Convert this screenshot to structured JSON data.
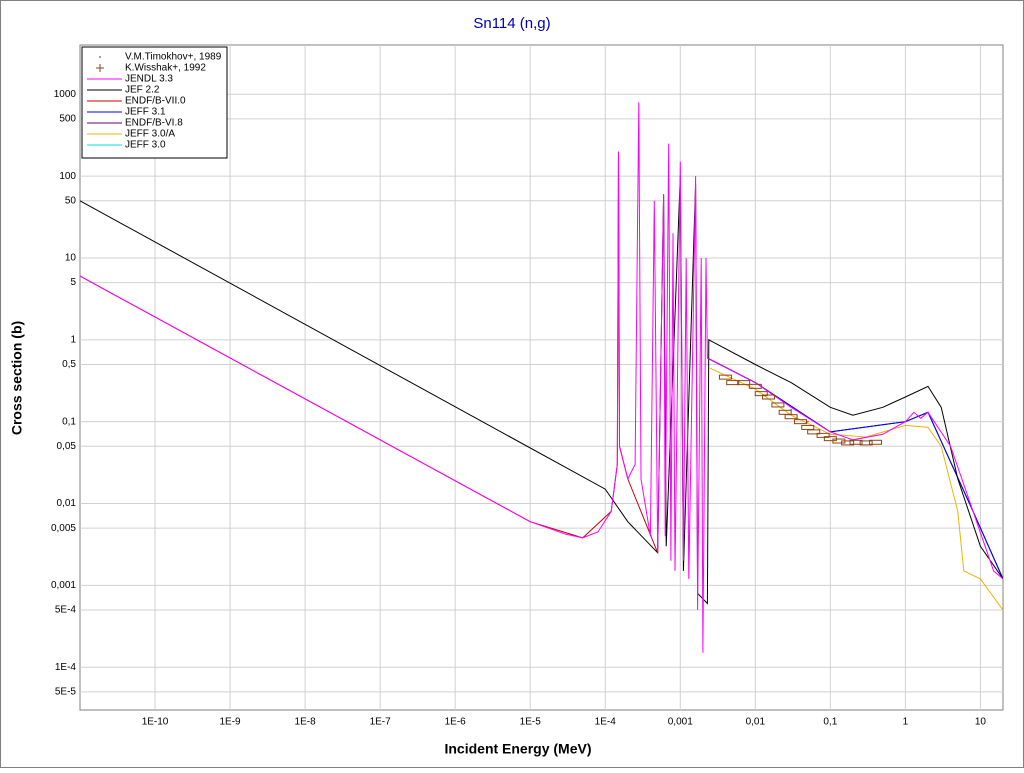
{
  "chart_data": {
    "type": "line",
    "title": "Sn114 (n,g)",
    "x_label": "Incident Energy (MeV)",
    "y_label": "Cross section (b)",
    "xscale": "log",
    "yscale": "log",
    "grid": true,
    "legend": "upper left",
    "xlim": [
      1e-11,
      20
    ],
    "ylim": [
      3e-05,
      4000
    ],
    "xticks": [
      {
        "value": 1e-10,
        "label": "1E-10"
      },
      {
        "value": 1e-09,
        "label": "1E-9"
      },
      {
        "value": 1e-08,
        "label": "1E-8"
      },
      {
        "value": 1e-07,
        "label": "1E-7"
      },
      {
        "value": 1e-06,
        "label": "1E-6"
      },
      {
        "value": 1e-05,
        "label": "1E-5"
      },
      {
        "value": 0.0001,
        "label": "1E-4"
      },
      {
        "value": 0.001,
        "label": "0,001"
      },
      {
        "value": 0.01,
        "label": "0,01"
      },
      {
        "value": 0.1,
        "label": "0,1"
      },
      1,
      10
    ],
    "yticks": [
      1000,
      500,
      100,
      50,
      10,
      5,
      1,
      {
        "value": 0.5,
        "label": "0,5"
      },
      {
        "value": 0.1,
        "label": "0,1"
      },
      {
        "value": 0.05,
        "label": "0,05"
      },
      {
        "value": 0.01,
        "label": "0,01"
      },
      {
        "value": 0.005,
        "label": "0,005"
      },
      {
        "value": 0.001,
        "label": "0,001"
      },
      {
        "value": 0.0005,
        "label": "5E-4"
      },
      {
        "value": 0.0001,
        "label": "1E-4"
      },
      {
        "value": 5e-05,
        "label": "5E-5"
      }
    ],
    "series": [
      {
        "name": "V.M.Timokhov+, 1989",
        "color": "#808080",
        "mode": "dots",
        "x": [
          0.03,
          0.05
        ],
        "values": [
          0.14,
          0.1
        ]
      },
      {
        "name": "K.Wisshak+, 1992",
        "color": "#8b4513",
        "mode": "plus",
        "x": [
          0.004,
          0.005,
          0.007,
          0.01,
          0.012,
          0.015,
          0.02,
          0.025,
          0.03,
          0.04,
          0.05,
          0.06,
          0.08,
          0.1,
          0.13,
          0.17,
          0.22,
          0.3,
          0.4
        ],
        "values": [
          0.35,
          0.3,
          0.3,
          0.27,
          0.22,
          0.2,
          0.16,
          0.13,
          0.115,
          0.1,
          0.085,
          0.075,
          0.068,
          0.062,
          0.058,
          0.055,
          0.056,
          0.055,
          0.056
        ]
      },
      {
        "name": "JENDL 3.3",
        "color": "#ff00ff",
        "x": [
          1e-11,
          1e-05,
          3e-05,
          5e-05,
          8e-05,
          0.00012,
          0.000145,
          0.00015,
          0.000155,
          0.0002,
          0.00025,
          0.00028,
          0.0003,
          0.0004,
          0.00045,
          0.0005,
          0.0006,
          0.00063,
          0.0007,
          0.00075,
          0.0008,
          0.00085,
          0.001,
          0.0011,
          0.0012,
          0.0013,
          0.0016,
          0.0017,
          0.0019,
          0.002,
          0.0022,
          0.0023,
          0.01,
          0.03,
          0.1,
          0.2,
          0.5,
          1,
          1.3,
          1.6,
          2,
          4,
          8,
          15,
          20
        ],
        "values": [
          6,
          0.006,
          0.0042,
          0.0038,
          0.0045,
          0.008,
          0.03,
          200,
          0.05,
          0.02,
          0.03,
          800,
          0.02,
          0.004,
          50,
          0.0025,
          60,
          0.004,
          250,
          0.002,
          20,
          0.0015,
          150,
          0.002,
          10,
          0.0012,
          100,
          0.0005,
          10,
          0.00015,
          10,
          0.6,
          0.3,
          0.15,
          0.075,
          0.06,
          0.07,
          0.1,
          0.13,
          0.11,
          0.13,
          0.05,
          0.008,
          0.0015,
          0.0012
        ]
      },
      {
        "name": "JEF 2.2",
        "color": "#000000",
        "x": [
          1e-11,
          0.0001,
          0.0002,
          0.0005,
          0.0006,
          0.00065,
          0.001,
          0.0011,
          0.0016,
          0.0017,
          0.0023,
          0.0024,
          0.01,
          0.03,
          0.1,
          0.2,
          0.5,
          1,
          2,
          3,
          5,
          10,
          20
        ],
        "values": [
          50,
          0.015,
          0.006,
          0.0025,
          60,
          0.003,
          100,
          0.0015,
          80,
          0.0008,
          0.0006,
          1,
          0.5,
          0.3,
          0.15,
          0.12,
          0.15,
          0.2,
          0.27,
          0.15,
          0.02,
          0.003,
          0.0012
        ]
      },
      {
        "name": "ENDF/B-VII.0",
        "color": "#cc0000",
        "x": [
          1e-11,
          1e-05,
          5e-05,
          0.00012,
          0.000145,
          0.00015,
          0.000155,
          0.0002,
          0.0005
        ],
        "values": [
          6,
          0.006,
          0.0038,
          0.008,
          0.03,
          200,
          0.05,
          0.02,
          0.0025
        ]
      },
      {
        "name": "JEFF 3.1",
        "color": "#0000ff",
        "x": [
          0.0023,
          0.01,
          0.1,
          1,
          2,
          8,
          20
        ],
        "values": [
          0.6,
          0.3,
          0.075,
          0.1,
          0.13,
          0.008,
          0.0012
        ]
      },
      {
        "name": "ENDF/B-VI.8",
        "color": "#660066",
        "x": [
          0.0023,
          0.01,
          0.1,
          1,
          2,
          8,
          20
        ],
        "values": [
          0.6,
          0.3,
          0.075,
          0.1,
          0.13,
          0.008,
          0.0012
        ]
      },
      {
        "name": "JEFF 3.0/A",
        "color": "#f0b400",
        "x": [
          0.0025,
          0.01,
          0.03,
          0.1,
          0.3,
          1,
          2,
          3,
          5,
          6,
          10,
          20
        ],
        "values": [
          0.45,
          0.25,
          0.12,
          0.07,
          0.065,
          0.09,
          0.085,
          0.05,
          0.008,
          0.0015,
          0.0012,
          0.0005
        ]
      },
      {
        "name": "JEFF 3.0",
        "color": "#00e0e0",
        "x": [
          0.0023,
          0.01,
          0.1,
          1,
          2,
          8,
          20
        ],
        "values": [
          0.6,
          0.3,
          0.075,
          0.1,
          0.13,
          0.008,
          0.0012
        ]
      }
    ]
  }
}
